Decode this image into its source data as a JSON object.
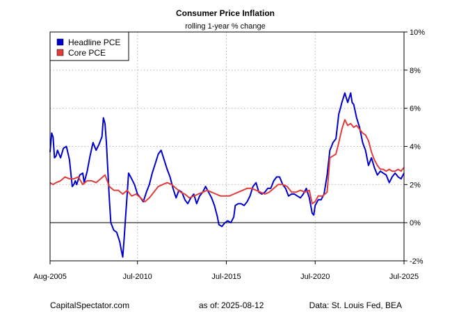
{
  "chart_data": {
    "type": "line",
    "title": "Consumer Price Inflation",
    "subtitle": "rolling 1-year % change",
    "xlabel": "",
    "ylabel": "",
    "xlim": [
      2005.58,
      2025.5
    ],
    "ylim": [
      -2,
      10
    ],
    "y_ticks": [
      -2,
      0,
      2,
      4,
      6,
      8,
      10
    ],
    "y_tick_labels": [
      "-2%",
      "0%",
      "2%",
      "4%",
      "6%",
      "8%",
      "10%"
    ],
    "y_axis_side": "right",
    "x_ticks": [
      2005.58,
      2010.5,
      2015.5,
      2020.5,
      2025.5
    ],
    "x_tick_labels": [
      "Aug-2005",
      "Jul-2010",
      "Jul-2015",
      "Jul-2020",
      "Jul-2025"
    ],
    "grid": true,
    "reference_line": 0,
    "legend_position": "top-left",
    "series": [
      {
        "name": "Headline PCE",
        "color": "#0000CC",
        "points": [
          [
            2005.58,
            3.7
          ],
          [
            2005.67,
            4.7
          ],
          [
            2005.75,
            4.5
          ],
          [
            2005.83,
            3.4
          ],
          [
            2005.92,
            3.5
          ],
          [
            2006.0,
            3.8
          ],
          [
            2006.17,
            3.4
          ],
          [
            2006.33,
            3.9
          ],
          [
            2006.5,
            4.0
          ],
          [
            2006.67,
            3.3
          ],
          [
            2006.75,
            2.6
          ],
          [
            2006.83,
            1.9
          ],
          [
            2006.92,
            2.0
          ],
          [
            2007.0,
            2.2
          ],
          [
            2007.08,
            2.0
          ],
          [
            2007.25,
            2.5
          ],
          [
            2007.42,
            2.6
          ],
          [
            2007.5,
            2.1
          ],
          [
            2007.67,
            2.7
          ],
          [
            2007.83,
            3.5
          ],
          [
            2008.0,
            4.2
          ],
          [
            2008.17,
            3.8
          ],
          [
            2008.33,
            4.1
          ],
          [
            2008.5,
            4.5
          ],
          [
            2008.58,
            5.5
          ],
          [
            2008.67,
            5.2
          ],
          [
            2008.75,
            4.2
          ],
          [
            2008.83,
            2.8
          ],
          [
            2008.92,
            1.2
          ],
          [
            2009.0,
            0.0
          ],
          [
            2009.17,
            -0.4
          ],
          [
            2009.33,
            -0.5
          ],
          [
            2009.5,
            -1.0
          ],
          [
            2009.58,
            -1.4
          ],
          [
            2009.67,
            -1.8
          ],
          [
            2009.75,
            -0.8
          ],
          [
            2009.83,
            0.3
          ],
          [
            2009.92,
            1.5
          ],
          [
            2010.0,
            2.6
          ],
          [
            2010.17,
            2.3
          ],
          [
            2010.33,
            2.0
          ],
          [
            2010.5,
            1.5
          ],
          [
            2010.67,
            1.3
          ],
          [
            2010.83,
            1.1
          ],
          [
            2011.0,
            1.6
          ],
          [
            2011.17,
            2.0
          ],
          [
            2011.33,
            2.6
          ],
          [
            2011.5,
            3.1
          ],
          [
            2011.67,
            3.6
          ],
          [
            2011.83,
            3.8
          ],
          [
            2012.0,
            3.3
          ],
          [
            2012.17,
            2.8
          ],
          [
            2012.33,
            2.4
          ],
          [
            2012.5,
            1.8
          ],
          [
            2012.67,
            1.3
          ],
          [
            2012.83,
            1.7
          ],
          [
            2013.0,
            1.6
          ],
          [
            2013.17,
            1.2
          ],
          [
            2013.33,
            1.0
          ],
          [
            2013.5,
            1.3
          ],
          [
            2013.67,
            1.5
          ],
          [
            2013.83,
            1.0
          ],
          [
            2014.0,
            1.4
          ],
          [
            2014.17,
            1.6
          ],
          [
            2014.33,
            1.9
          ],
          [
            2014.5,
            1.6
          ],
          [
            2014.67,
            1.3
          ],
          [
            2014.83,
            0.9
          ],
          [
            2015.0,
            0.3
          ],
          [
            2015.08,
            -0.1
          ],
          [
            2015.25,
            -0.2
          ],
          [
            2015.42,
            0.0
          ],
          [
            2015.58,
            0.1
          ],
          [
            2015.75,
            0.0
          ],
          [
            2015.92,
            0.3
          ],
          [
            2016.0,
            0.9
          ],
          [
            2016.17,
            1.0
          ],
          [
            2016.33,
            1.0
          ],
          [
            2016.5,
            0.9
          ],
          [
            2016.67,
            1.1
          ],
          [
            2016.83,
            1.4
          ],
          [
            2017.0,
            1.9
          ],
          [
            2017.17,
            2.1
          ],
          [
            2017.33,
            1.6
          ],
          [
            2017.5,
            1.5
          ],
          [
            2017.67,
            1.6
          ],
          [
            2017.83,
            1.8
          ],
          [
            2018.0,
            1.8
          ],
          [
            2018.17,
            2.2
          ],
          [
            2018.33,
            2.4
          ],
          [
            2018.5,
            2.4
          ],
          [
            2018.67,
            2.0
          ],
          [
            2018.83,
            1.8
          ],
          [
            2019.0,
            1.4
          ],
          [
            2019.17,
            1.5
          ],
          [
            2019.33,
            1.5
          ],
          [
            2019.5,
            1.4
          ],
          [
            2019.67,
            1.3
          ],
          [
            2019.83,
            1.5
          ],
          [
            2020.0,
            1.8
          ],
          [
            2020.17,
            1.3
          ],
          [
            2020.33,
            0.5
          ],
          [
            2020.42,
            0.4
          ],
          [
            2020.5,
            0.9
          ],
          [
            2020.67,
            1.2
          ],
          [
            2020.83,
            1.2
          ],
          [
            2021.0,
            1.5
          ],
          [
            2021.17,
            2.5
          ],
          [
            2021.33,
            3.8
          ],
          [
            2021.42,
            4.0
          ],
          [
            2021.5,
            4.2
          ],
          [
            2021.67,
            4.4
          ],
          [
            2021.83,
            5.7
          ],
          [
            2021.92,
            6.0
          ],
          [
            2022.0,
            6.3
          ],
          [
            2022.17,
            6.8
          ],
          [
            2022.33,
            6.3
          ],
          [
            2022.5,
            6.8
          ],
          [
            2022.58,
            6.3
          ],
          [
            2022.67,
            6.2
          ],
          [
            2022.83,
            5.5
          ],
          [
            2023.0,
            5.0
          ],
          [
            2023.17,
            4.2
          ],
          [
            2023.33,
            3.8
          ],
          [
            2023.5,
            3.0
          ],
          [
            2023.67,
            3.4
          ],
          [
            2023.83,
            2.9
          ],
          [
            2024.0,
            2.5
          ],
          [
            2024.17,
            2.7
          ],
          [
            2024.33,
            2.6
          ],
          [
            2024.5,
            2.5
          ],
          [
            2024.67,
            2.1
          ],
          [
            2024.83,
            2.4
          ],
          [
            2025.0,
            2.6
          ],
          [
            2025.17,
            2.4
          ],
          [
            2025.33,
            2.3
          ],
          [
            2025.5,
            2.6
          ]
        ]
      },
      {
        "name": "Core PCE",
        "color": "#E03C3C",
        "points": [
          [
            2005.58,
            2.1
          ],
          [
            2005.75,
            2.0
          ],
          [
            2005.92,
            2.1
          ],
          [
            2006.17,
            2.2
          ],
          [
            2006.42,
            2.4
          ],
          [
            2006.67,
            2.3
          ],
          [
            2006.92,
            2.3
          ],
          [
            2007.17,
            2.4
          ],
          [
            2007.42,
            2.0
          ],
          [
            2007.67,
            2.2
          ],
          [
            2007.92,
            2.2
          ],
          [
            2008.17,
            2.1
          ],
          [
            2008.42,
            2.3
          ],
          [
            2008.67,
            2.5
          ],
          [
            2008.92,
            1.9
          ],
          [
            2009.17,
            1.7
          ],
          [
            2009.42,
            1.7
          ],
          [
            2009.67,
            1.5
          ],
          [
            2009.92,
            1.7
          ],
          [
            2010.17,
            1.4
          ],
          [
            2010.42,
            1.5
          ],
          [
            2010.67,
            1.3
          ],
          [
            2010.92,
            1.1
          ],
          [
            2011.17,
            1.3
          ],
          [
            2011.42,
            1.6
          ],
          [
            2011.67,
            1.9
          ],
          [
            2011.92,
            2.0
          ],
          [
            2012.17,
            2.1
          ],
          [
            2012.42,
            2.0
          ],
          [
            2012.67,
            1.8
          ],
          [
            2012.92,
            1.6
          ],
          [
            2013.17,
            1.5
          ],
          [
            2013.42,
            1.3
          ],
          [
            2013.67,
            1.4
          ],
          [
            2013.92,
            1.5
          ],
          [
            2014.17,
            1.6
          ],
          [
            2014.42,
            1.7
          ],
          [
            2014.67,
            1.6
          ],
          [
            2014.92,
            1.5
          ],
          [
            2015.17,
            1.4
          ],
          [
            2015.42,
            1.4
          ],
          [
            2015.67,
            1.4
          ],
          [
            2015.92,
            1.5
          ],
          [
            2016.17,
            1.6
          ],
          [
            2016.42,
            1.7
          ],
          [
            2016.67,
            1.8
          ],
          [
            2016.92,
            1.8
          ],
          [
            2017.17,
            1.7
          ],
          [
            2017.42,
            1.6
          ],
          [
            2017.67,
            1.5
          ],
          [
            2017.92,
            1.6
          ],
          [
            2018.17,
            1.8
          ],
          [
            2018.42,
            2.0
          ],
          [
            2018.67,
            2.0
          ],
          [
            2018.92,
            1.9
          ],
          [
            2019.17,
            1.6
          ],
          [
            2019.42,
            1.6
          ],
          [
            2019.67,
            1.7
          ],
          [
            2019.92,
            1.6
          ],
          [
            2020.17,
            1.7
          ],
          [
            2020.33,
            1.0
          ],
          [
            2020.5,
            1.1
          ],
          [
            2020.67,
            1.4
          ],
          [
            2020.92,
            1.4
          ],
          [
            2021.17,
            1.6
          ],
          [
            2021.33,
            3.4
          ],
          [
            2021.5,
            3.5
          ],
          [
            2021.67,
            3.6
          ],
          [
            2021.83,
            4.2
          ],
          [
            2022.0,
            4.9
          ],
          [
            2022.17,
            5.4
          ],
          [
            2022.33,
            5.1
          ],
          [
            2022.5,
            5.2
          ],
          [
            2022.67,
            5.0
          ],
          [
            2022.83,
            5.1
          ],
          [
            2023.0,
            4.9
          ],
          [
            2023.17,
            4.7
          ],
          [
            2023.33,
            4.6
          ],
          [
            2023.5,
            4.3
          ],
          [
            2023.67,
            3.7
          ],
          [
            2023.83,
            3.3
          ],
          [
            2024.0,
            3.0
          ],
          [
            2024.17,
            2.8
          ],
          [
            2024.33,
            2.8
          ],
          [
            2024.5,
            2.7
          ],
          [
            2024.67,
            2.8
          ],
          [
            2024.83,
            2.7
          ],
          [
            2025.0,
            2.7
          ],
          [
            2025.17,
            2.8
          ],
          [
            2025.33,
            2.7
          ],
          [
            2025.5,
            2.9
          ]
        ]
      }
    ]
  },
  "footer": {
    "source_site": "CapitalSpectator.com",
    "as_of_label": "as of:",
    "as_of_date": "2025-08-12",
    "data_source": "Data: St. Louis Fed, BEA"
  }
}
